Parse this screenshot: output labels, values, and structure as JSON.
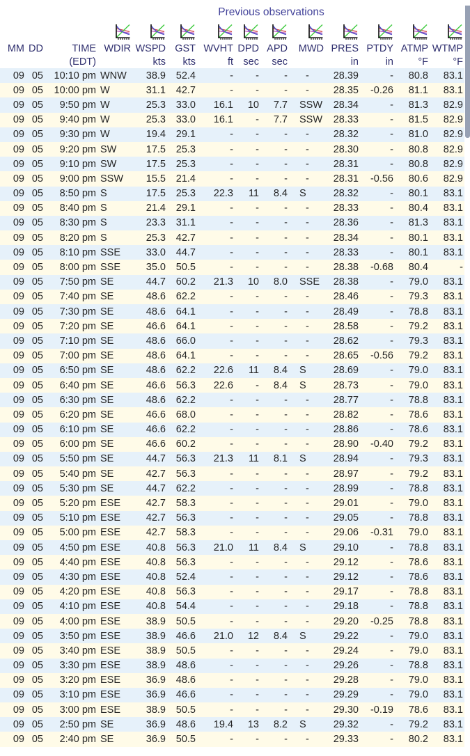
{
  "title": "Previous observations",
  "colors": {
    "stripe_blue": "#e6f1fa",
    "stripe_cream": "#fffbe8",
    "header_text": "#30306f",
    "title_text": "#44449b",
    "data_text": "#262626",
    "scrollbar_thumb": "#97a1b4",
    "icon_blue": "#5050c8",
    "icon_green": "#44cc44",
    "icon_red": "#d04040",
    "icon_magenta": "#bb55bb"
  },
  "icons": {
    "plot_icon_name": "time-series-plot-icon"
  },
  "table": {
    "columns": [
      {
        "key": "mm",
        "label": "MM",
        "unit": "",
        "icon": false
      },
      {
        "key": "dd",
        "label": "DD",
        "unit": "",
        "icon": false
      },
      {
        "key": "time",
        "label": "TIME",
        "unit": "(EDT)",
        "icon": false
      },
      {
        "key": "wdir",
        "label": "WDIR",
        "unit": "",
        "icon": true
      },
      {
        "key": "wspd",
        "label": "WSPD",
        "unit": "kts",
        "icon": true
      },
      {
        "key": "gst",
        "label": "GST",
        "unit": "kts",
        "icon": true
      },
      {
        "key": "wvht",
        "label": "WVHT",
        "unit": "ft",
        "icon": true
      },
      {
        "key": "dpd",
        "label": "DPD",
        "unit": "sec",
        "icon": true
      },
      {
        "key": "apd",
        "label": "APD",
        "unit": "sec",
        "icon": true
      },
      {
        "key": "mwd",
        "label": "MWD",
        "unit": "",
        "icon": true
      },
      {
        "key": "pres",
        "label": "PRES",
        "unit": "in",
        "icon": true
      },
      {
        "key": "ptdy",
        "label": "PTDY",
        "unit": "in",
        "icon": true
      },
      {
        "key": "atmp",
        "label": "ATMP",
        "unit": "°F",
        "icon": true
      },
      {
        "key": "wtmp",
        "label": "WTMP",
        "unit": "°F",
        "icon": true
      }
    ],
    "rows": [
      [
        "09",
        "05",
        "10:10 pm",
        "WNW",
        "38.9",
        "52.4",
        "-",
        "-",
        "-",
        "-",
        "28.39",
        "-",
        "80.8",
        "83.1"
      ],
      [
        "09",
        "05",
        "10:00 pm",
        "W",
        "31.1",
        "42.7",
        "-",
        "-",
        "-",
        "-",
        "28.35",
        "-0.26",
        "81.1",
        "83.1"
      ],
      [
        "09",
        "05",
        "9:50 pm",
        "W",
        "25.3",
        "33.0",
        "16.1",
        "10",
        "7.7",
        "SSW",
        "28.34",
        "-",
        "81.3",
        "82.9"
      ],
      [
        "09",
        "05",
        "9:40 pm",
        "W",
        "25.3",
        "33.0",
        "16.1",
        "-",
        "7.7",
        "SSW",
        "28.33",
        "-",
        "81.5",
        "82.9"
      ],
      [
        "09",
        "05",
        "9:30 pm",
        "W",
        "19.4",
        "29.1",
        "-",
        "-",
        "-",
        "-",
        "28.32",
        "-",
        "81.0",
        "82.9"
      ],
      [
        "09",
        "05",
        "9:20 pm",
        "SW",
        "17.5",
        "25.3",
        "-",
        "-",
        "-",
        "-",
        "28.30",
        "-",
        "80.8",
        "82.9"
      ],
      [
        "09",
        "05",
        "9:10 pm",
        "SW",
        "17.5",
        "25.3",
        "-",
        "-",
        "-",
        "-",
        "28.31",
        "-",
        "80.8",
        "82.9"
      ],
      [
        "09",
        "05",
        "9:00 pm",
        "SSW",
        "15.5",
        "21.4",
        "-",
        "-",
        "-",
        "-",
        "28.31",
        "-0.56",
        "80.6",
        "82.9"
      ],
      [
        "09",
        "05",
        "8:50 pm",
        "S",
        "17.5",
        "25.3",
        "22.3",
        "11",
        "8.4",
        "S",
        "28.32",
        "-",
        "80.1",
        "83.1"
      ],
      [
        "09",
        "05",
        "8:40 pm",
        "S",
        "21.4",
        "29.1",
        "-",
        "-",
        "-",
        "-",
        "28.33",
        "-",
        "80.4",
        "83.1"
      ],
      [
        "09",
        "05",
        "8:30 pm",
        "S",
        "23.3",
        "31.1",
        "-",
        "-",
        "-",
        "-",
        "28.36",
        "-",
        "81.3",
        "83.1"
      ],
      [
        "09",
        "05",
        "8:20 pm",
        "S",
        "25.3",
        "42.7",
        "-",
        "-",
        "-",
        "-",
        "28.34",
        "-",
        "80.1",
        "83.1"
      ],
      [
        "09",
        "05",
        "8:10 pm",
        "SSE",
        "33.0",
        "44.7",
        "-",
        "-",
        "-",
        "-",
        "28.33",
        "-",
        "80.1",
        "83.1"
      ],
      [
        "09",
        "05",
        "8:00 pm",
        "SSE",
        "35.0",
        "50.5",
        "-",
        "-",
        "-",
        "-",
        "28.38",
        "-0.68",
        "80.4",
        "-"
      ],
      [
        "09",
        "05",
        "7:50 pm",
        "SE",
        "44.7",
        "60.2",
        "21.3",
        "10",
        "8.0",
        "SSE",
        "28.38",
        "-",
        "79.0",
        "83.1"
      ],
      [
        "09",
        "05",
        "7:40 pm",
        "SE",
        "48.6",
        "62.2",
        "-",
        "-",
        "-",
        "-",
        "28.46",
        "-",
        "79.3",
        "83.1"
      ],
      [
        "09",
        "05",
        "7:30 pm",
        "SE",
        "48.6",
        "64.1",
        "-",
        "-",
        "-",
        "-",
        "28.49",
        "-",
        "78.8",
        "83.1"
      ],
      [
        "09",
        "05",
        "7:20 pm",
        "SE",
        "46.6",
        "64.1",
        "-",
        "-",
        "-",
        "-",
        "28.58",
        "-",
        "79.2",
        "83.1"
      ],
      [
        "09",
        "05",
        "7:10 pm",
        "SE",
        "48.6",
        "66.0",
        "-",
        "-",
        "-",
        "-",
        "28.62",
        "-",
        "79.3",
        "83.1"
      ],
      [
        "09",
        "05",
        "7:00 pm",
        "SE",
        "48.6",
        "64.1",
        "-",
        "-",
        "-",
        "-",
        "28.65",
        "-0.56",
        "79.2",
        "83.1"
      ],
      [
        "09",
        "05",
        "6:50 pm",
        "SE",
        "48.6",
        "62.2",
        "22.6",
        "11",
        "8.4",
        "S",
        "28.69",
        "-",
        "79.0",
        "83.1"
      ],
      [
        "09",
        "05",
        "6:40 pm",
        "SE",
        "46.6",
        "56.3",
        "22.6",
        "-",
        "8.4",
        "S",
        "28.73",
        "-",
        "79.0",
        "83.1"
      ],
      [
        "09",
        "05",
        "6:30 pm",
        "SE",
        "48.6",
        "62.2",
        "-",
        "-",
        "-",
        "-",
        "28.77",
        "-",
        "78.8",
        "83.1"
      ],
      [
        "09",
        "05",
        "6:20 pm",
        "SE",
        "46.6",
        "68.0",
        "-",
        "-",
        "-",
        "-",
        "28.82",
        "-",
        "78.6",
        "83.1"
      ],
      [
        "09",
        "05",
        "6:10 pm",
        "SE",
        "46.6",
        "62.2",
        "-",
        "-",
        "-",
        "-",
        "28.86",
        "-",
        "78.6",
        "83.1"
      ],
      [
        "09",
        "05",
        "6:00 pm",
        "SE",
        "46.6",
        "60.2",
        "-",
        "-",
        "-",
        "-",
        "28.90",
        "-0.40",
        "79.2",
        "83.1"
      ],
      [
        "09",
        "05",
        "5:50 pm",
        "SE",
        "44.7",
        "56.3",
        "21.3",
        "11",
        "8.1",
        "S",
        "28.94",
        "-",
        "79.3",
        "83.1"
      ],
      [
        "09",
        "05",
        "5:40 pm",
        "SE",
        "42.7",
        "56.3",
        "-",
        "-",
        "-",
        "-",
        "28.97",
        "-",
        "79.2",
        "83.1"
      ],
      [
        "09",
        "05",
        "5:30 pm",
        "SE",
        "44.7",
        "62.2",
        "-",
        "-",
        "-",
        "-",
        "28.99",
        "-",
        "78.8",
        "83.1"
      ],
      [
        "09",
        "05",
        "5:20 pm",
        "ESE",
        "42.7",
        "58.3",
        "-",
        "-",
        "-",
        "-",
        "29.01",
        "-",
        "79.0",
        "83.1"
      ],
      [
        "09",
        "05",
        "5:10 pm",
        "ESE",
        "42.7",
        "56.3",
        "-",
        "-",
        "-",
        "-",
        "29.05",
        "-",
        "78.8",
        "83.1"
      ],
      [
        "09",
        "05",
        "5:00 pm",
        "ESE",
        "42.7",
        "58.3",
        "-",
        "-",
        "-",
        "-",
        "29.06",
        "-0.31",
        "79.0",
        "83.1"
      ],
      [
        "09",
        "05",
        "4:50 pm",
        "ESE",
        "40.8",
        "56.3",
        "21.0",
        "11",
        "8.4",
        "S",
        "29.10",
        "-",
        "78.8",
        "83.1"
      ],
      [
        "09",
        "05",
        "4:40 pm",
        "ESE",
        "40.8",
        "56.3",
        "-",
        "-",
        "-",
        "-",
        "29.12",
        "-",
        "78.6",
        "83.1"
      ],
      [
        "09",
        "05",
        "4:30 pm",
        "ESE",
        "40.8",
        "52.4",
        "-",
        "-",
        "-",
        "-",
        "29.12",
        "-",
        "78.6",
        "83.1"
      ],
      [
        "09",
        "05",
        "4:20 pm",
        "ESE",
        "40.8",
        "56.3",
        "-",
        "-",
        "-",
        "-",
        "29.17",
        "-",
        "78.8",
        "83.1"
      ],
      [
        "09",
        "05",
        "4:10 pm",
        "ESE",
        "40.8",
        "54.4",
        "-",
        "-",
        "-",
        "-",
        "29.18",
        "-",
        "78.8",
        "83.1"
      ],
      [
        "09",
        "05",
        "4:00 pm",
        "ESE",
        "38.9",
        "50.5",
        "-",
        "-",
        "-",
        "-",
        "29.20",
        "-0.25",
        "78.8",
        "83.1"
      ],
      [
        "09",
        "05",
        "3:50 pm",
        "ESE",
        "38.9",
        "46.6",
        "21.0",
        "12",
        "8.4",
        "S",
        "29.22",
        "-",
        "79.0",
        "83.1"
      ],
      [
        "09",
        "05",
        "3:40 pm",
        "ESE",
        "38.9",
        "50.5",
        "-",
        "-",
        "-",
        "-",
        "29.24",
        "-",
        "79.0",
        "83.1"
      ],
      [
        "09",
        "05",
        "3:30 pm",
        "ESE",
        "38.9",
        "48.6",
        "-",
        "-",
        "-",
        "-",
        "29.26",
        "-",
        "78.8",
        "83.1"
      ],
      [
        "09",
        "05",
        "3:20 pm",
        "ESE",
        "36.9",
        "48.6",
        "-",
        "-",
        "-",
        "-",
        "29.28",
        "-",
        "79.0",
        "83.1"
      ],
      [
        "09",
        "05",
        "3:10 pm",
        "ESE",
        "36.9",
        "46.6",
        "-",
        "-",
        "-",
        "-",
        "29.29",
        "-",
        "79.0",
        "83.1"
      ],
      [
        "09",
        "05",
        "3:00 pm",
        "ESE",
        "38.9",
        "50.5",
        "-",
        "-",
        "-",
        "-",
        "29.30",
        "-0.19",
        "78.6",
        "83.1"
      ],
      [
        "09",
        "05",
        "2:50 pm",
        "SE",
        "36.9",
        "48.6",
        "19.4",
        "13",
        "8.2",
        "S",
        "29.32",
        "-",
        "79.2",
        "83.1"
      ],
      [
        "09",
        "05",
        "2:40 pm",
        "SE",
        "36.9",
        "50.5",
        "-",
        "-",
        "-",
        "-",
        "29.33",
        "-",
        "80.2",
        "83.1"
      ]
    ]
  }
}
